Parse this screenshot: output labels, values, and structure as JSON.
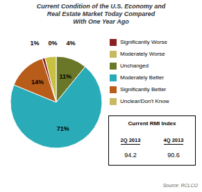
{
  "chart_data": [
    {
      "type": "pie",
      "title": "Current Condition of the U.S. Economy and\nReal Estate Market Today Compared\nWith One Year Ago",
      "values": [
        11,
        71,
        14,
        1,
        0,
        4
      ],
      "value_labels": [
        "11%",
        "71%",
        "14%",
        "1%",
        "0%",
        "4%"
      ],
      "colors": [
        "#6B7728",
        "#2AABB8",
        "#B85C1A",
        "#8B2020",
        "#C8B860",
        "#C8C040"
      ],
      "data_labels": true,
      "legend": "right",
      "series": [
        {
          "name": "Significantly Worse",
          "color": "#8B2020"
        },
        {
          "name": "Moderately Worse",
          "color": "#C8B860"
        },
        {
          "name": "Unchanged",
          "color": "#6B7728"
        },
        {
          "name": "Moderately Better",
          "color": "#2AABB8"
        },
        {
          "name": "Significantly Better",
          "color": "#B85C1A"
        },
        {
          "name": "Unclear/Don't Know",
          "color": "#C8B860"
        }
      ],
      "annotations": [
        "Source: RCLCO"
      ]
    },
    {
      "type": "table",
      "title": "Current RMI Index",
      "categories": [
        "2Q 2013",
        "4Q 2013"
      ],
      "values": [
        94.2,
        90.6
      ]
    }
  ]
}
